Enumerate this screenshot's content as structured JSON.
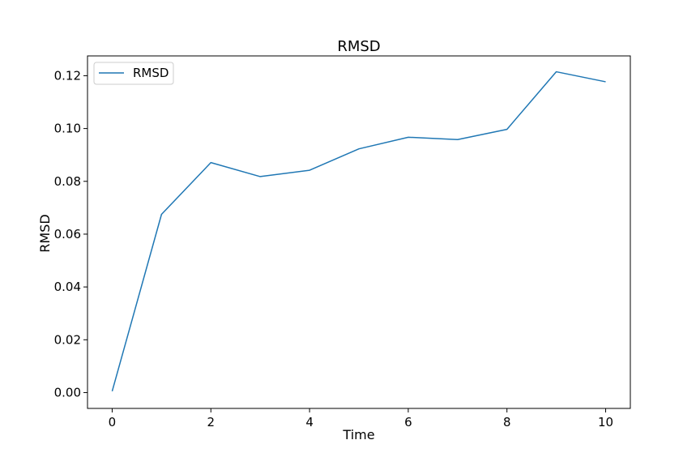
{
  "chart_data": {
    "type": "line",
    "title": "RMSD",
    "xlabel": "Time",
    "ylabel": "RMSD",
    "xlim": [
      -0.5,
      10.5
    ],
    "ylim": [
      -0.006,
      0.1275
    ],
    "xticks": [
      0,
      2,
      4,
      6,
      8,
      10
    ],
    "xtick_labels": [
      "0",
      "2",
      "4",
      "6",
      "8",
      "10"
    ],
    "yticks": [
      0.0,
      0.02,
      0.04,
      0.06,
      0.08,
      0.1,
      0.12
    ],
    "ytick_labels": [
      "0.00",
      "0.02",
      "0.04",
      "0.06",
      "0.08",
      "0.10",
      "0.12"
    ],
    "grid": false,
    "legend": {
      "placement": "top-left"
    },
    "series": [
      {
        "name": "RMSD",
        "color": "#1f77b4",
        "x": [
          0,
          1,
          2,
          3,
          4,
          5,
          6,
          7,
          8,
          9,
          10
        ],
        "y": [
          0.0005,
          0.0675,
          0.0871,
          0.0818,
          0.0842,
          0.0923,
          0.0967,
          0.0958,
          0.0997,
          0.1215,
          0.1177
        ]
      }
    ]
  }
}
